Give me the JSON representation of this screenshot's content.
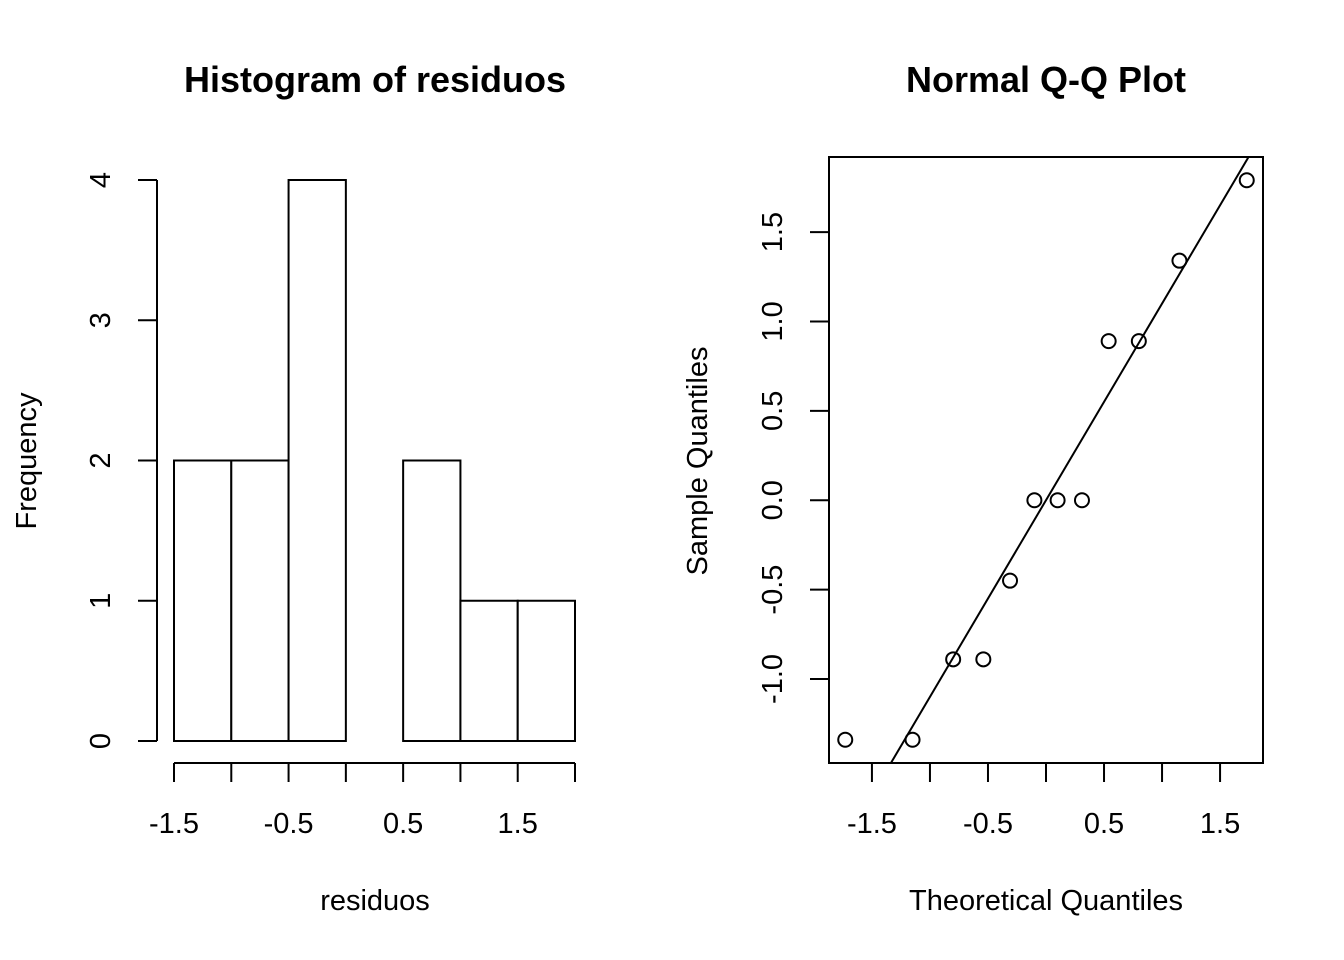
{
  "chart_data": [
    {
      "type": "bar",
      "title": "Histogram of residuos",
      "xlabel": "residuos",
      "ylabel": "Frequency",
      "bin_edges": [
        -1.5,
        -1.0,
        -0.5,
        0.0,
        0.5,
        1.0,
        1.5,
        2.0
      ],
      "counts": [
        2,
        2,
        4,
        0,
        2,
        1,
        1
      ],
      "xlim": [
        -1.5,
        2.0
      ],
      "ylim": [
        0,
        4
      ],
      "x_ticks": [
        -1.5,
        -1.0,
        -0.5,
        0.0,
        0.5,
        1.0,
        1.5,
        2.0
      ],
      "x_tick_labels": [
        "-1.5",
        "-0.5",
        "0.5",
        "1.5"
      ],
      "x_tick_label_values": [
        -1.5,
        -0.5,
        0.5,
        1.5
      ],
      "y_ticks": [
        0,
        1,
        2,
        3,
        4
      ],
      "y_tick_labels": [
        "0",
        "1",
        "2",
        "3",
        "4"
      ],
      "grid": false
    },
    {
      "type": "scatter",
      "title": "Normal Q-Q Plot",
      "xlabel": "Theoretical Quantiles",
      "ylabel": "Sample Quantiles",
      "points": [
        {
          "x": -1.73,
          "y": -1.34
        },
        {
          "x": -1.15,
          "y": -1.34
        },
        {
          "x": -0.8,
          "y": -0.89
        },
        {
          "x": -0.54,
          "y": -0.89
        },
        {
          "x": -0.31,
          "y": -0.45
        },
        {
          "x": -0.1,
          "y": 0.0
        },
        {
          "x": 0.1,
          "y": 0.0
        },
        {
          "x": 0.31,
          "y": 0.0
        },
        {
          "x": 0.54,
          "y": 0.89
        },
        {
          "x": 0.8,
          "y": 0.89
        },
        {
          "x": 1.15,
          "y": 1.34
        },
        {
          "x": 1.73,
          "y": 1.79
        }
      ],
      "reference_line": {
        "x1": -2.0,
        "y1": -2.2,
        "x2": 2.0,
        "y2": 2.2
      },
      "xlim": [
        -1.87,
        1.87
      ],
      "ylim": [
        -1.47,
        1.92
      ],
      "x_ticks": [
        -1.5,
        -1.0,
        -0.5,
        0.0,
        0.5,
        1.0,
        1.5
      ],
      "x_tick_labels": [
        "-1.5",
        "-0.5",
        "0.5",
        "1.5"
      ],
      "x_tick_label_values": [
        -1.5,
        -0.5,
        0.5,
        1.5
      ],
      "y_ticks": [
        -1.0,
        -0.5,
        0.0,
        0.5,
        1.0,
        1.5
      ],
      "y_tick_labels": [
        "-1.0",
        "-0.5",
        "0.0",
        "0.5",
        "1.0",
        "1.5"
      ],
      "grid": false
    }
  ]
}
